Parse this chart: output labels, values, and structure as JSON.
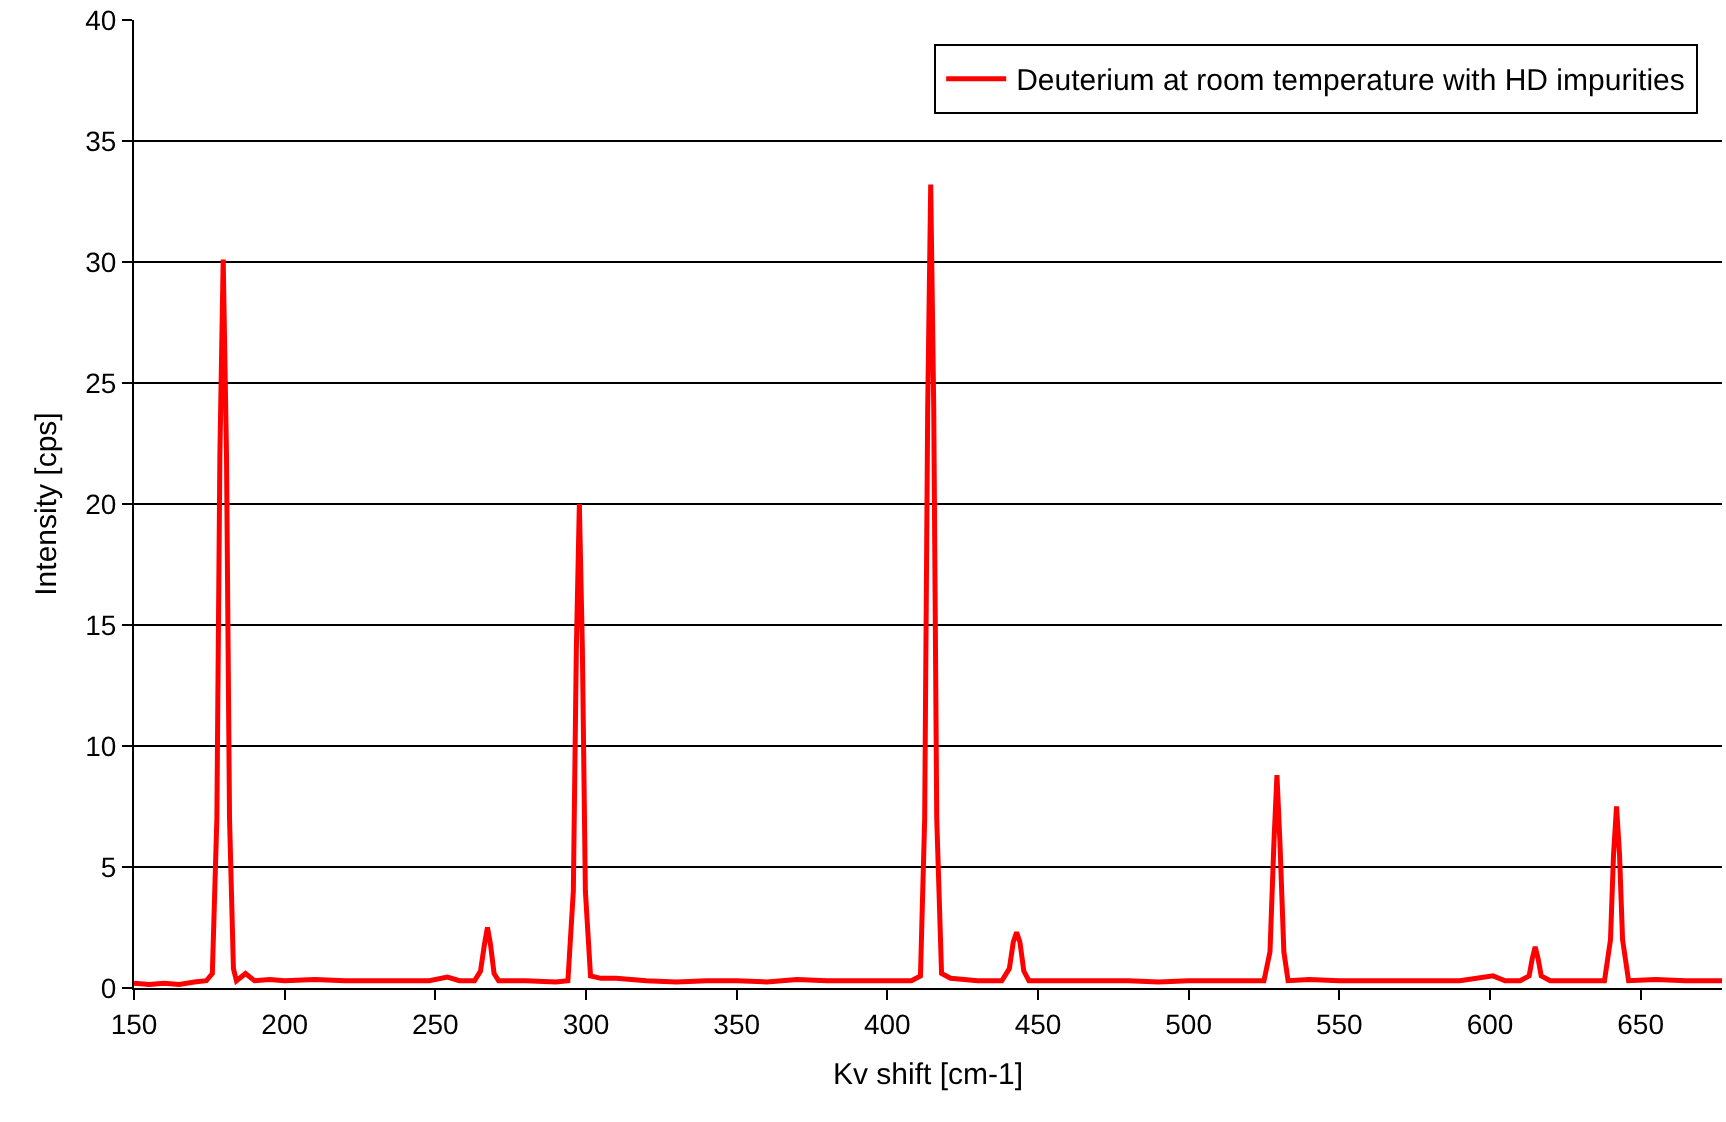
{
  "chart_data": {
    "type": "line",
    "xlabel": "Kv shift [cm-1]",
    "ylabel": "Intensity [cps]",
    "xlim": [
      150,
      677
    ],
    "xticks": [
      150,
      200,
      250,
      300,
      350,
      400,
      450,
      500,
      550,
      600,
      650
    ],
    "ylim": [
      0,
      40
    ],
    "yticks": [
      0,
      5,
      10,
      15,
      20,
      25,
      30,
      35,
      40
    ],
    "grid": "y",
    "legend": "top right",
    "marker": "none",
    "line_style": "solid",
    "series": [
      {
        "name": "Deuterium at room temperature with HD impurities",
        "color": "#ff0000",
        "x": [
          150,
          155,
          160,
          165,
          170,
          174,
          176,
          177.5,
          178.5,
          179.6,
          180.7,
          181.7,
          183,
          184,
          187,
          190,
          195,
          200,
          210,
          220,
          230,
          240,
          248,
          254,
          258,
          263,
          265,
          266.3,
          267.3,
          268.3,
          269.5,
          271,
          280,
          290,
          294,
          295.8,
          296.8,
          297.8,
          298.8,
          299.8,
          301.5,
          305,
          310,
          320,
          330,
          340,
          350,
          360,
          370,
          380,
          390,
          400,
          408,
          411,
          412.4,
          413.4,
          414.4,
          415.4,
          416.4,
          418,
          421,
          430,
          438,
          440.5,
          441.8,
          442.9,
          444,
          445.3,
          447,
          460,
          470,
          480,
          490,
          500,
          510,
          520,
          525,
          527,
          528.3,
          529.3,
          530.3,
          531.6,
          533,
          540,
          550,
          560,
          570,
          580,
          590,
          601,
          605,
          610,
          613,
          614,
          615,
          616,
          617,
          620,
          630,
          638,
          640,
          641,
          642,
          643,
          644,
          646,
          655,
          665,
          677
        ],
        "values": [
          0.2,
          0.15,
          0.2,
          0.15,
          0.25,
          0.3,
          0.6,
          7,
          22,
          30.1,
          22,
          7,
          0.8,
          0.3,
          0.6,
          0.3,
          0.35,
          0.3,
          0.35,
          0.3,
          0.3,
          0.3,
          0.3,
          0.45,
          0.3,
          0.3,
          0.7,
          1.8,
          2.5,
          1.8,
          0.6,
          0.3,
          0.3,
          0.25,
          0.3,
          4,
          14,
          20,
          14,
          4,
          0.5,
          0.4,
          0.4,
          0.3,
          0.25,
          0.3,
          0.3,
          0.25,
          0.35,
          0.3,
          0.3,
          0.3,
          0.3,
          0.5,
          7,
          24,
          33.2,
          24,
          7,
          0.6,
          0.4,
          0.3,
          0.3,
          0.8,
          1.9,
          2.3,
          1.9,
          0.7,
          0.3,
          0.3,
          0.3,
          0.3,
          0.25,
          0.3,
          0.3,
          0.3,
          0.3,
          1.5,
          6,
          8.8,
          6,
          1.5,
          0.3,
          0.35,
          0.3,
          0.3,
          0.3,
          0.3,
          0.3,
          0.5,
          0.3,
          0.3,
          0.5,
          1.2,
          1.7,
          1.2,
          0.5,
          0.3,
          0.3,
          0.3,
          2,
          5.5,
          7.5,
          5.5,
          2,
          0.3,
          0.35,
          0.3,
          0.3
        ]
      }
    ]
  }
}
